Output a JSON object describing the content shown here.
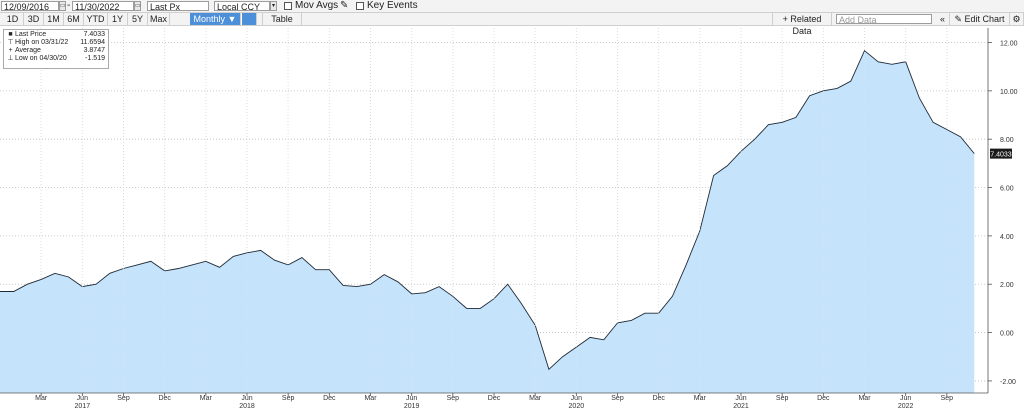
{
  "toolbar": {
    "start_date": "12/09/2016",
    "end_date": "11/30/2022",
    "field": "Last Px",
    "currency": "Local CCY",
    "mov_avgs_label": "Mov Avgs",
    "key_events_label": "Key Events",
    "periods": [
      "1D",
      "3D",
      "1M",
      "6M",
      "YTD",
      "1Y",
      "5Y",
      "Max"
    ],
    "frequency": "Monthly",
    "table_label": "Table",
    "related_data_label": "Related Data",
    "add_data_placeholder": "Add Data",
    "edit_chart_label": "Edit Chart"
  },
  "legend": {
    "rows": [
      {
        "label": "Last Price",
        "value": "7.4033"
      },
      {
        "label": "High on 03/31/22",
        "value": "11.6594"
      },
      {
        "label": "Average",
        "value": "3.8747"
      },
      {
        "label": "Low on 04/30/20",
        "value": "-1.519"
      }
    ]
  },
  "colors": {
    "area_fill": "#c5e3fb",
    "line": "#1f2a36",
    "accent": "#4d8fd8",
    "last_badge_bg": "#1a1a1a",
    "last_badge_text": "#ffffff"
  },
  "chart_data": {
    "type": "area",
    "series": [
      {
        "name": "Last Price",
        "points": [
          [
            "2016-12",
            1.7
          ],
          [
            "2017-01",
            1.7
          ],
          [
            "2017-02",
            2.0
          ],
          [
            "2017-03",
            2.2
          ],
          [
            "2017-04",
            2.45
          ],
          [
            "2017-05",
            2.3
          ],
          [
            "2017-06",
            1.9
          ],
          [
            "2017-07",
            2.0
          ],
          [
            "2017-08",
            2.45
          ],
          [
            "2017-09",
            2.65
          ],
          [
            "2017-10",
            2.8
          ],
          [
            "2017-11",
            2.95
          ],
          [
            "2017-12",
            2.55
          ],
          [
            "2018-01",
            2.65
          ],
          [
            "2018-02",
            2.8
          ],
          [
            "2018-03",
            2.95
          ],
          [
            "2018-04",
            2.7
          ],
          [
            "2018-05",
            3.15
          ],
          [
            "2018-06",
            3.3
          ],
          [
            "2018-07",
            3.4
          ],
          [
            "2018-08",
            3.0
          ],
          [
            "2018-09",
            2.8
          ],
          [
            "2018-10",
            3.1
          ],
          [
            "2018-11",
            2.6
          ],
          [
            "2018-12",
            2.6
          ],
          [
            "2019-01",
            1.95
          ],
          [
            "2019-02",
            1.9
          ],
          [
            "2019-03",
            2.0
          ],
          [
            "2019-04",
            2.4
          ],
          [
            "2019-05",
            2.1
          ],
          [
            "2019-06",
            1.6
          ],
          [
            "2019-07",
            1.65
          ],
          [
            "2019-08",
            1.9
          ],
          [
            "2019-09",
            1.5
          ],
          [
            "2019-10",
            1.0
          ],
          [
            "2019-11",
            1.0
          ],
          [
            "2019-12",
            1.4
          ],
          [
            "2020-01",
            2.0
          ],
          [
            "2020-02",
            1.2
          ],
          [
            "2020-03",
            0.3
          ],
          [
            "2020-04",
            -1.519
          ],
          [
            "2020-05",
            -1.0
          ],
          [
            "2020-06",
            -0.6
          ],
          [
            "2020-07",
            -0.2
          ],
          [
            "2020-08",
            -0.3
          ],
          [
            "2020-09",
            0.4
          ],
          [
            "2020-10",
            0.5
          ],
          [
            "2020-11",
            0.8
          ],
          [
            "2020-12",
            0.8
          ],
          [
            "2021-01",
            1.5
          ],
          [
            "2021-02",
            2.8
          ],
          [
            "2021-03",
            4.2
          ],
          [
            "2021-04",
            6.5
          ],
          [
            "2021-05",
            6.9
          ],
          [
            "2021-06",
            7.5
          ],
          [
            "2021-07",
            8.0
          ],
          [
            "2021-08",
            8.6
          ],
          [
            "2021-09",
            8.7
          ],
          [
            "2021-10",
            8.9
          ],
          [
            "2021-11",
            9.8
          ],
          [
            "2021-12",
            10.0
          ],
          [
            "2022-01",
            10.1
          ],
          [
            "2022-02",
            10.4
          ],
          [
            "2022-03",
            11.6594
          ],
          [
            "2022-04",
            11.2
          ],
          [
            "2022-05",
            11.1
          ],
          [
            "2022-06",
            11.2
          ],
          [
            "2022-07",
            9.7
          ],
          [
            "2022-08",
            8.7
          ],
          [
            "2022-09",
            8.4
          ],
          [
            "2022-10",
            8.1
          ],
          [
            "2022-11",
            7.4033
          ]
        ]
      }
    ],
    "last_value_label": "7.4033",
    "ylim": [
      -2.5,
      12.6
    ],
    "yticks": [
      -2,
      0,
      2,
      4,
      6,
      8,
      10,
      12
    ],
    "ytick_labels": [
      "-2.00",
      "0.00",
      "2.00",
      "4.00",
      "6.00",
      "8.00",
      "10.00",
      "12.00"
    ],
    "xlim": [
      "2016-12",
      "2022-12"
    ],
    "month_ticks": [
      [
        "2017-03",
        "Mar"
      ],
      [
        "2017-06",
        "Jun"
      ],
      [
        "2017-09",
        "Sep"
      ],
      [
        "2017-12",
        "Dec"
      ],
      [
        "2018-03",
        "Mar"
      ],
      [
        "2018-06",
        "Jun"
      ],
      [
        "2018-09",
        "Sep"
      ],
      [
        "2018-12",
        "Dec"
      ],
      [
        "2019-03",
        "Mar"
      ],
      [
        "2019-06",
        "Jun"
      ],
      [
        "2019-09",
        "Sep"
      ],
      [
        "2019-12",
        "Dec"
      ],
      [
        "2020-03",
        "Mar"
      ],
      [
        "2020-06",
        "Jun"
      ],
      [
        "2020-09",
        "Sep"
      ],
      [
        "2020-12",
        "Dec"
      ],
      [
        "2021-03",
        "Mar"
      ],
      [
        "2021-06",
        "Jun"
      ],
      [
        "2021-09",
        "Sep"
      ],
      [
        "2021-12",
        "Dec"
      ],
      [
        "2022-03",
        "Mar"
      ],
      [
        "2022-06",
        "Jun"
      ],
      [
        "2022-09",
        "Sep"
      ]
    ],
    "year_labels": [
      [
        "2017-06",
        "2017"
      ],
      [
        "2018-06",
        "2018"
      ],
      [
        "2019-06",
        "2019"
      ],
      [
        "2020-06",
        "2020"
      ],
      [
        "2021-06",
        "2021"
      ],
      [
        "2022-06",
        "2022"
      ]
    ],
    "grid": true,
    "legend_position": "top-left"
  }
}
